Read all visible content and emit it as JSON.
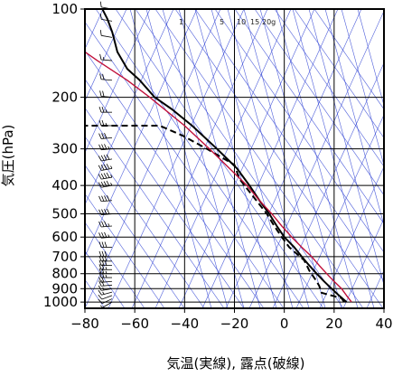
{
  "chart_data": {
    "type": "line",
    "title": "",
    "xlabel": "気温(実線), 露点(破線)",
    "ylabel": "気圧(hPa)",
    "xlim": [
      -80,
      40
    ],
    "ylim": [
      1050,
      100
    ],
    "y_scale": "log",
    "x_ticks": [
      -80,
      -60,
      -40,
      -20,
      0,
      20,
      40
    ],
    "y_ticks": [
      100,
      200,
      300,
      400,
      500,
      600,
      700,
      800,
      900,
      1000
    ],
    "mixing_ratio_labels": [
      "1",
      "5",
      "10",
      "15",
      "20g"
    ],
    "grid": true,
    "colors": {
      "temperature": "#000000",
      "dewpoint": "#000000",
      "parcel_curve": "#c0103a",
      "skew_lines": "#3a4cd6",
      "grid": "#000000",
      "wind_barbs": "#000000"
    },
    "series": [
      {
        "style": "solid",
        "color": "#000000",
        "points": [
          [
            25,
            1000
          ],
          [
            22,
            950
          ],
          [
            19,
            900
          ],
          [
            16,
            850
          ],
          [
            13,
            800
          ],
          [
            10,
            750
          ],
          [
            7,
            700
          ],
          [
            4,
            650
          ],
          [
            0,
            600
          ],
          [
            -3,
            550
          ],
          [
            -6,
            500
          ],
          [
            -10,
            450
          ],
          [
            -14,
            400
          ],
          [
            -19,
            350
          ],
          [
            -27,
            300
          ],
          [
            -37,
            250
          ],
          [
            -45,
            220
          ],
          [
            -52,
            200
          ],
          [
            -58,
            175
          ],
          [
            -63,
            160
          ],
          [
            -67,
            140
          ],
          [
            -69,
            120
          ],
          [
            -71,
            108
          ],
          [
            -73,
            100
          ]
        ]
      },
      {
        "style": "dashed",
        "color": "#000000",
        "points": [
          [
            24,
            1000
          ],
          [
            23,
            970
          ],
          [
            15,
            930
          ],
          [
            14,
            880
          ],
          [
            13,
            850
          ],
          [
            10,
            780
          ],
          [
            8,
            720
          ],
          [
            2,
            650
          ],
          [
            -1,
            600
          ],
          [
            -4,
            550
          ],
          [
            -7,
            500
          ],
          [
            -14,
            420
          ],
          [
            -18,
            380
          ],
          [
            -20,
            340
          ],
          [
            -31,
            300
          ],
          [
            -41,
            270
          ],
          [
            -50,
            250
          ],
          [
            -83,
            250
          ]
        ]
      },
      {
        "style": "solid",
        "color": "#c0103a",
        "points": [
          [
            27,
            1000
          ],
          [
            25,
            950
          ],
          [
            23,
            900
          ],
          [
            20,
            850
          ],
          [
            17,
            800
          ],
          [
            14,
            750
          ],
          [
            11,
            700
          ],
          [
            7,
            650
          ],
          [
            3,
            600
          ],
          [
            -1,
            550
          ],
          [
            -5,
            500
          ],
          [
            -10,
            450
          ],
          [
            -15,
            400
          ],
          [
            -22,
            350
          ],
          [
            -30,
            300
          ],
          [
            -40,
            250
          ],
          [
            -54,
            200
          ],
          [
            -63,
            175
          ],
          [
            -75,
            150
          ],
          [
            -80,
            140
          ]
        ]
      }
    ],
    "wind_barbs": [
      {
        "p": 1000,
        "dir": 240,
        "spd": 5
      },
      {
        "p": 975,
        "dir": 245,
        "spd": 10
      },
      {
        "p": 950,
        "dir": 250,
        "spd": 10
      },
      {
        "p": 925,
        "dir": 255,
        "spd": 15
      },
      {
        "p": 900,
        "dir": 260,
        "spd": 15
      },
      {
        "p": 875,
        "dir": 265,
        "spd": 20
      },
      {
        "p": 850,
        "dir": 265,
        "spd": 20
      },
      {
        "p": 825,
        "dir": 270,
        "spd": 25
      },
      {
        "p": 800,
        "dir": 270,
        "spd": 25
      },
      {
        "p": 775,
        "dir": 270,
        "spd": 25
      },
      {
        "p": 750,
        "dir": 270,
        "spd": 30
      },
      {
        "p": 725,
        "dir": 270,
        "spd": 30
      },
      {
        "p": 700,
        "dir": 270,
        "spd": 30
      },
      {
        "p": 650,
        "dir": 270,
        "spd": 30
      },
      {
        "p": 600,
        "dir": 265,
        "spd": 35
      },
      {
        "p": 550,
        "dir": 265,
        "spd": 35
      },
      {
        "p": 500,
        "dir": 265,
        "spd": 40
      },
      {
        "p": 450,
        "dir": 265,
        "spd": 40
      },
      {
        "p": 400,
        "dir": 260,
        "spd": 45
      },
      {
        "p": 375,
        "dir": 260,
        "spd": 45
      },
      {
        "p": 350,
        "dir": 260,
        "spd": 45
      },
      {
        "p": 325,
        "dir": 260,
        "spd": 40
      },
      {
        "p": 300,
        "dir": 265,
        "spd": 35
      },
      {
        "p": 275,
        "dir": 265,
        "spd": 30
      },
      {
        "p": 250,
        "dir": 270,
        "spd": 25
      },
      {
        "p": 225,
        "dir": 270,
        "spd": 25
      },
      {
        "p": 200,
        "dir": 275,
        "spd": 20
      },
      {
        "p": 175,
        "dir": 275,
        "spd": 20
      },
      {
        "p": 150,
        "dir": 275,
        "spd": 15
      },
      {
        "p": 125,
        "dir": 280,
        "spd": 10
      },
      {
        "p": 110,
        "dir": 280,
        "spd": 10
      },
      {
        "p": 100,
        "dir": 280,
        "spd": 10
      }
    ]
  }
}
